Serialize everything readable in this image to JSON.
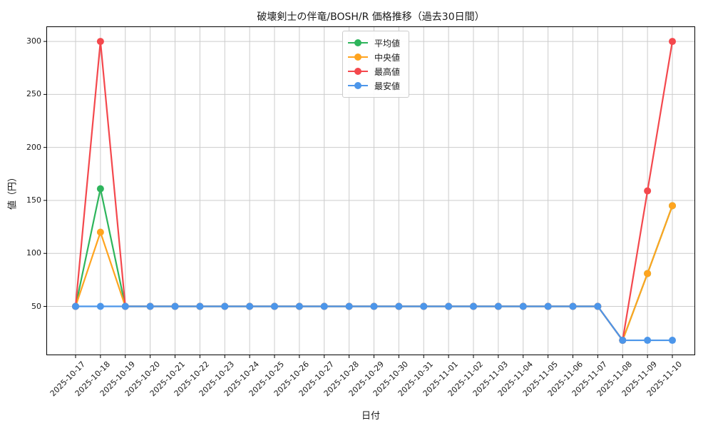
{
  "chart_data": {
    "type": "line",
    "title": "破壊剣士の伴竜/BOSH/R 価格推移（過去30日間）",
    "xlabel": "日付",
    "ylabel": "値（円）",
    "categories": [
      "2025-10-17",
      "2025-10-18",
      "2025-10-19",
      "2025-10-20",
      "2025-10-21",
      "2025-10-22",
      "2025-10-23",
      "2025-10-24",
      "2025-10-25",
      "2025-10-26",
      "2025-10-27",
      "2025-10-28",
      "2025-10-29",
      "2025-10-30",
      "2025-10-31",
      "2025-11-01",
      "2025-11-02",
      "2025-11-03",
      "2025-11-04",
      "2025-11-05",
      "2025-11-06",
      "2025-11-07",
      "2025-11-08",
      "2025-11-09",
      "2025-11-10"
    ],
    "series": [
      {
        "name": "平均値",
        "color": "#2eb55c",
        "values": [
          50,
          161,
          50,
          50,
          50,
          50,
          50,
          50,
          50,
          50,
          50,
          50,
          50,
          50,
          50,
          50,
          50,
          50,
          50,
          50,
          50,
          50,
          18,
          81,
          145
        ]
      },
      {
        "name": "中央値",
        "color": "#ffa41f",
        "values": [
          50,
          120,
          50,
          50,
          50,
          50,
          50,
          50,
          50,
          50,
          50,
          50,
          50,
          50,
          50,
          50,
          50,
          50,
          50,
          50,
          50,
          50,
          18,
          81,
          145
        ]
      },
      {
        "name": "最高値",
        "color": "#f4484d",
        "values": [
          50,
          300,
          50,
          50,
          50,
          50,
          50,
          50,
          50,
          50,
          50,
          50,
          50,
          50,
          50,
          50,
          50,
          50,
          50,
          50,
          50,
          50,
          18,
          159,
          300
        ]
      },
      {
        "name": "最安値",
        "color": "#4c96ea",
        "values": [
          50,
          50,
          50,
          50,
          50,
          50,
          50,
          50,
          50,
          50,
          50,
          50,
          50,
          50,
          50,
          50,
          50,
          50,
          50,
          50,
          50,
          50,
          18,
          18,
          18
        ]
      }
    ],
    "yticks": [
      50,
      100,
      150,
      200,
      250,
      300
    ],
    "ylim": [
      3.9,
      314.2
    ],
    "grid": true,
    "grid_color": "#cccccc",
    "axis_color": "#000000",
    "legend_position": "upper center"
  }
}
